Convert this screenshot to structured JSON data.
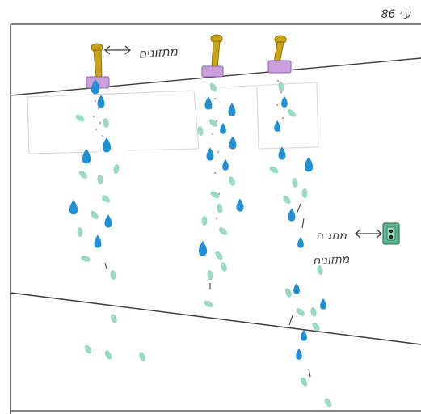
{
  "page_mark": "ע׳ 86",
  "labels": {
    "nozzles": "מתזונים",
    "switch_line1": "מתג ה",
    "switch_line2": "מתזונים"
  },
  "colors": {
    "outline": "#3a3a3a",
    "faint_outline": "#d6d6d6",
    "nozzle": "#c9a417",
    "nozzle_dark": "#8a6d0b",
    "mount": "#c9a0dc",
    "mount_stroke": "#8e5fb0",
    "drop_blue": "#1f8fd6",
    "drop_mint": "#8fd6bf",
    "spray_red": "#d8a0a0",
    "switch_body": "#5cb894",
    "switch_button": "#222222"
  },
  "icons": {
    "nozzle": "sprinkler-nozzle-icon",
    "switch": "wall-switch-icon",
    "arrow": "double-arrow-icon"
  }
}
